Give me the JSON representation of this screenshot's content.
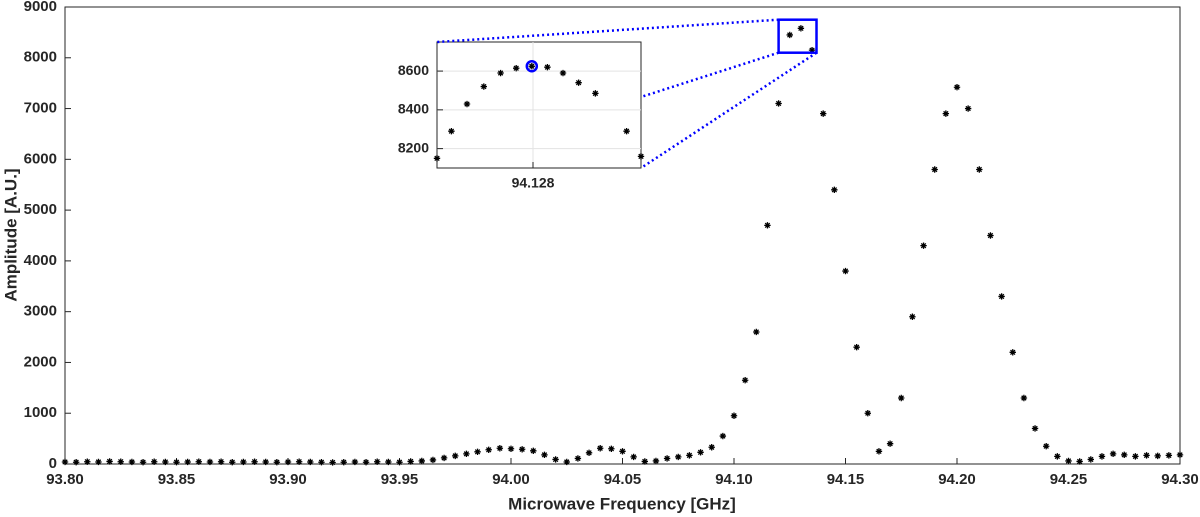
{
  "chart_data": [
    {
      "type": "scatter",
      "xlabel": "Microwave Frequency [GHz]",
      "ylabel": "Amplitude [A.U.]",
      "x": [
        93.8,
        93.805,
        93.81,
        93.815,
        93.82,
        93.825,
        93.83,
        93.835,
        93.84,
        93.845,
        93.85,
        93.855,
        93.86,
        93.865,
        93.87,
        93.875,
        93.88,
        93.885,
        93.89,
        93.895,
        93.9,
        93.905,
        93.91,
        93.915,
        93.92,
        93.925,
        93.93,
        93.935,
        93.94,
        93.945,
        93.95,
        93.955,
        93.96,
        93.965,
        93.97,
        93.975,
        93.98,
        93.985,
        93.99,
        93.995,
        94.0,
        94.005,
        94.01,
        94.015,
        94.02,
        94.025,
        94.03,
        94.035,
        94.04,
        94.045,
        94.05,
        94.055,
        94.06,
        94.065,
        94.07,
        94.075,
        94.08,
        94.085,
        94.09,
        94.095,
        94.1,
        94.105,
        94.11,
        94.115,
        94.12,
        94.125,
        94.13,
        94.135,
        94.14,
        94.145,
        94.15,
        94.155,
        94.16,
        94.165,
        94.17,
        94.175,
        94.18,
        94.185,
        94.19,
        94.195,
        94.2,
        94.205,
        94.21,
        94.215,
        94.22,
        94.225,
        94.23,
        94.235,
        94.24,
        94.245,
        94.25,
        94.255,
        94.26,
        94.265,
        94.27,
        94.275,
        94.28,
        94.285,
        94.29,
        94.295,
        94.3
      ],
      "series": [
        {
          "color": "#000000",
          "marker": "asterisk",
          "values": [
            40,
            35,
            45,
            40,
            50,
            45,
            40,
            35,
            45,
            40,
            35,
            40,
            45,
            40,
            45,
            35,
            40,
            45,
            40,
            35,
            40,
            45,
            40,
            35,
            30,
            35,
            40,
            35,
            45,
            40,
            35,
            50,
            60,
            80,
            120,
            160,
            200,
            240,
            280,
            310,
            300,
            290,
            260,
            180,
            90,
            40,
            110,
            220,
            310,
            300,
            250,
            140,
            50,
            60,
            110,
            140,
            170,
            230,
            330,
            550,
            950,
            1650,
            2600,
            4700,
            7100,
            8450,
            8580,
            8150,
            6900,
            5400,
            3800,
            2300,
            1000,
            250,
            400,
            1300,
            2900,
            4300,
            5800,
            6900,
            7420,
            7000,
            5800,
            4500,
            3300,
            2200,
            1300,
            700,
            350,
            150,
            60,
            50,
            90,
            150,
            200,
            180,
            150,
            170,
            160,
            170,
            180
          ]
        }
      ],
      "xlim": [
        93.8,
        94.3
      ],
      "ylim": [
        0,
        9000
      ],
      "xticks": [
        {
          "value": 93.8,
          "label": "93.80"
        },
        {
          "value": 93.85,
          "label": "93.85"
        },
        {
          "value": 93.9,
          "label": "93.90"
        },
        {
          "value": 93.95,
          "label": "93.95"
        },
        {
          "value": 94.0,
          "label": "94.00"
        },
        {
          "value": 94.05,
          "label": "94.05"
        },
        {
          "value": 94.1,
          "label": "94.10"
        },
        {
          "value": 94.15,
          "label": "94.15"
        },
        {
          "value": 94.2,
          "label": "94.20"
        },
        {
          "value": 94.25,
          "label": "94.25"
        },
        {
          "value": 94.3,
          "label": "94.30"
        }
      ],
      "yticks": [
        0,
        1000,
        2000,
        3000,
        4000,
        5000,
        6000,
        7000,
        8000,
        9000
      ],
      "grid": false
    },
    {
      "type": "scatter",
      "series": [
        {
          "color": "#000000",
          "marker": "asterisk",
          "x": [
            94.12,
            94.1212,
            94.1225,
            94.1239,
            94.1253,
            94.1266,
            94.1279,
            94.1292,
            94.1305,
            94.1318,
            94.1332,
            94.1358,
            94.137
          ],
          "values": [
            8150,
            8290,
            8430,
            8520,
            8590,
            8615,
            8625,
            8620,
            8590,
            8540,
            8485,
            8290,
            8160
          ]
        },
        {
          "color": "#0000ff",
          "marker": "circle",
          "x": [
            94.1279
          ],
          "values": [
            8625
          ]
        }
      ],
      "xlim": [
        94.12,
        94.137
      ],
      "ylim": [
        8100,
        8750
      ],
      "xticks": [
        94.128
      ],
      "yticks": [
        8200,
        8400,
        8600
      ],
      "grid": true
    }
  ]
}
